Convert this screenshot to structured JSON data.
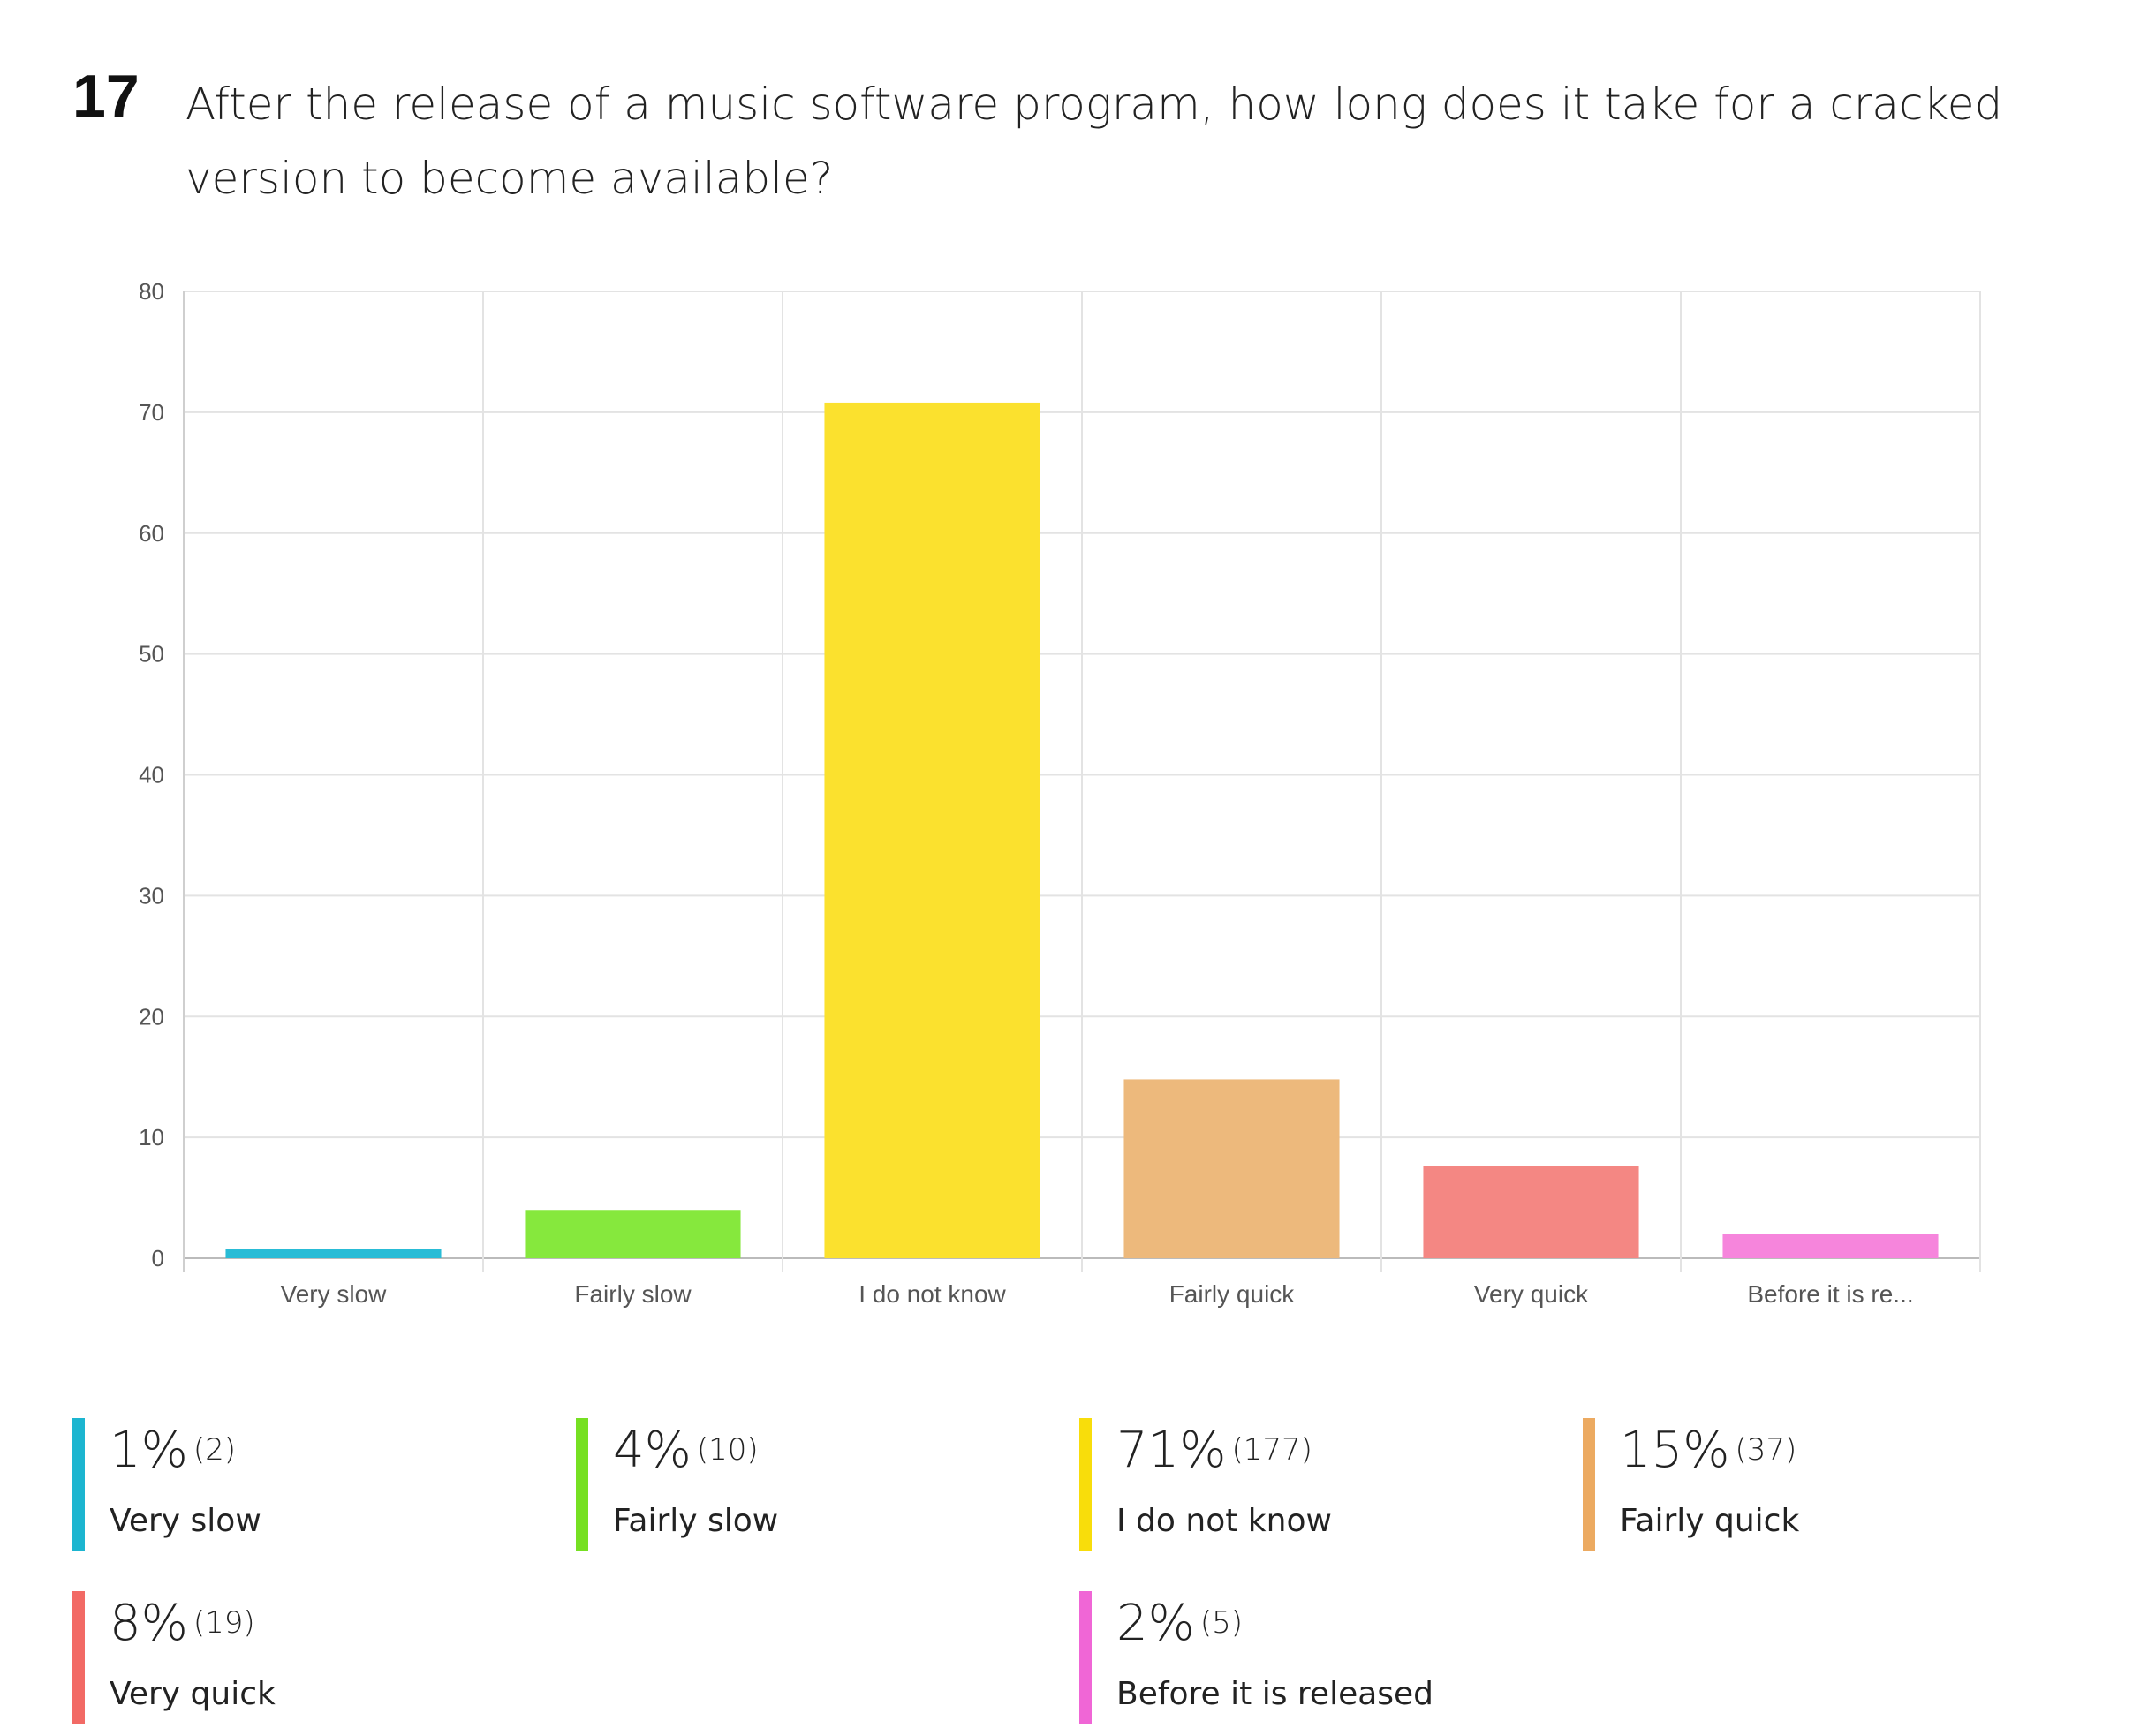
{
  "question": {
    "number": "17",
    "text": "After the release of a music software program, how long does it take for a cracked version to become available?"
  },
  "chart_data": {
    "type": "bar",
    "categories": [
      "Very slow",
      "Fairly slow",
      "I do not know",
      "Fairly quick",
      "Very quick",
      "Before it is re..."
    ],
    "values": [
      0.8,
      4,
      70.8,
      14.8,
      7.6,
      2
    ],
    "colors": [
      "#29bcd6",
      "#86e83d",
      "#fbe12e",
      "#edb97c",
      "#f48783",
      "#f685dc"
    ],
    "yticks": [
      0,
      10,
      20,
      30,
      40,
      50,
      60,
      70,
      80
    ],
    "ylim": [
      0,
      80
    ],
    "grid": true,
    "xlabel": "",
    "ylabel": ""
  },
  "legend": [
    {
      "pct": "1%",
      "count": "(2)",
      "label": "Very slow",
      "color": "#1cb5d0"
    },
    {
      "pct": "4%",
      "count": "(10)",
      "label": "Fairly slow",
      "color": "#76e022"
    },
    {
      "pct": "71%",
      "count": "(177)",
      "label": "I do not know",
      "color": "#f8dd0b"
    },
    {
      "pct": "15%",
      "count": "(37)",
      "label": "Fairly quick",
      "color": "#ecaa61"
    },
    {
      "pct": "8%",
      "count": "(19)",
      "label": "Very quick",
      "color": "#f26a65"
    },
    {
      "pct": "2%",
      "count": "(5)",
      "label": "Before it is released",
      "color": "#f066d6"
    }
  ]
}
